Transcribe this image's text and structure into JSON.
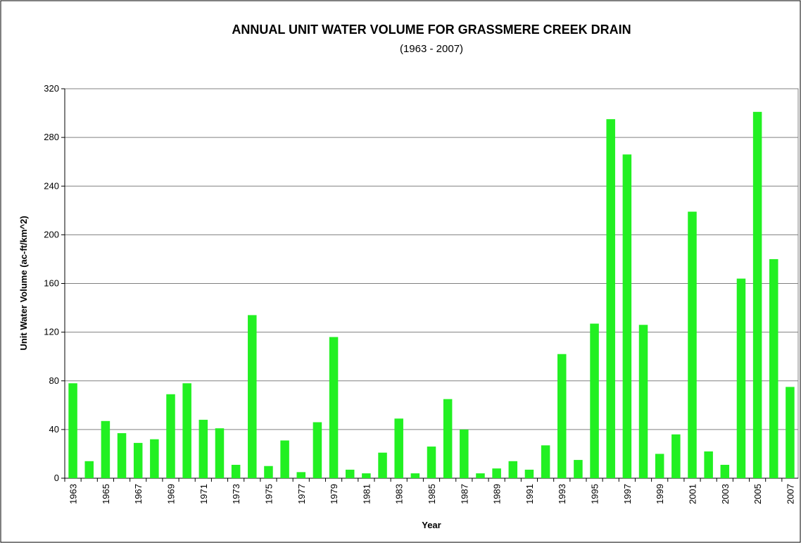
{
  "chart_data": {
    "type": "bar",
    "title": "ANNUAL UNIT WATER VOLUME FOR GRASSMERE CREEK DRAIN",
    "subtitle": "(1963 - 2007)",
    "x_label": "Year",
    "y_label": "Unit Water Volume (ac-ft/km^2)",
    "categories": [
      "1963",
      null,
      "1965",
      null,
      "1967",
      null,
      "1969",
      null,
      "1971",
      null,
      "1973",
      null,
      "1975",
      null,
      "1977",
      null,
      "1979",
      null,
      "1981",
      null,
      "1983",
      null,
      "1985",
      null,
      "1987",
      null,
      "1989",
      null,
      "1991",
      null,
      "1993",
      null,
      "1995",
      null,
      "1997",
      null,
      "1999",
      null,
      "2001",
      null,
      "2003",
      null,
      "2005",
      null,
      "2007"
    ],
    "values": [
      78,
      14,
      47,
      37,
      29,
      32,
      69,
      78,
      48,
      41,
      11,
      134,
      10,
      31,
      5,
      46,
      116,
      7,
      4,
      21,
      49,
      4,
      26,
      65,
      40,
      4,
      8,
      14,
      7,
      27,
      102,
      15,
      127,
      295,
      266,
      126,
      20,
      36,
      219,
      22,
      11,
      164,
      301,
      180,
      75
    ],
    "color": "#22f022",
    "ylim": [
      0,
      320
    ],
    "yticks": [
      0,
      40,
      80,
      120,
      160,
      200,
      240,
      280,
      320
    ],
    "grid": true
  }
}
